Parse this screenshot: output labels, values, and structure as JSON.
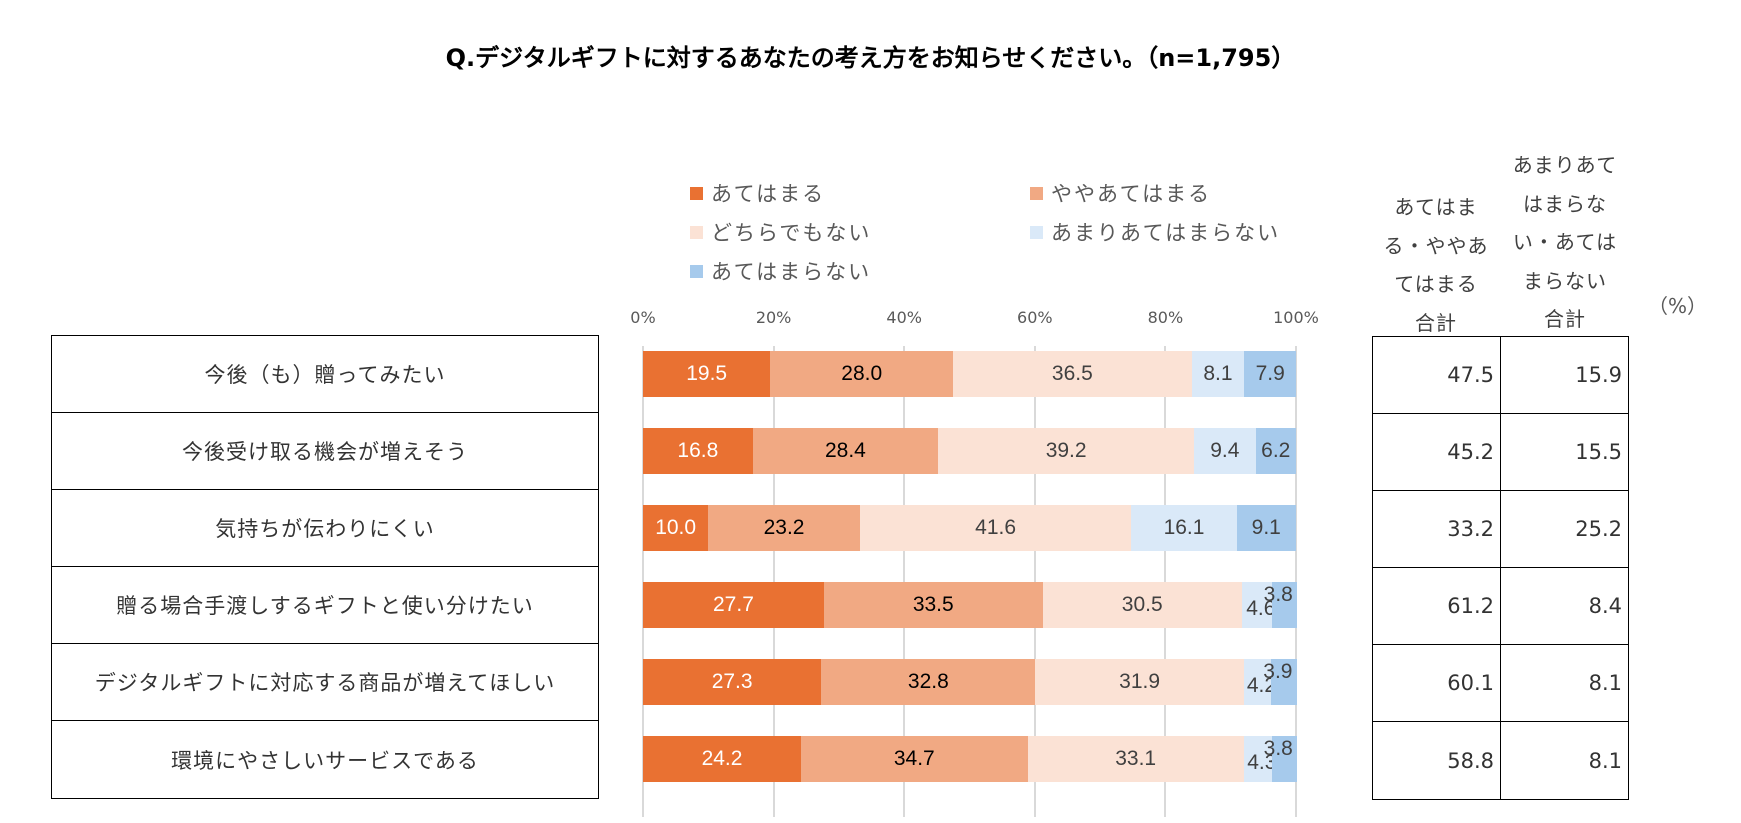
{
  "title": "Q.デジタルギフトに対するあなたの考え方をお知らせください。（n=1,795）",
  "unit_label": "（%）",
  "summary_headers": [
    [
      "あてはま",
      "る・ややあ",
      "てはまる",
      "合計"
    ],
    [
      "あまりあて",
      "はまらな",
      "い・あては",
      "まらない",
      "合計"
    ]
  ],
  "chart_data": {
    "type": "bar",
    "orientation": "horizontal",
    "stacked": "100%",
    "title": "Q.デジタルギフトに対するあなたの考え方をお知らせください。（n=1,795）",
    "xlabel": "",
    "ylabel": "",
    "xlim": [
      0,
      100
    ],
    "x_ticks": [
      "0%",
      "20%",
      "40%",
      "60%",
      "80%",
      "100%"
    ],
    "grid": true,
    "legend_position": "top",
    "categories": [
      "今後（も）贈ってみたい",
      "今後受け取る機会が増えそう",
      "気持ちが伝わりにくい",
      "贈る場合手渡しするギフトと使い分けたい",
      "デジタルギフトに対応する商品が増えてほしい",
      "環境にやさしいサービスである"
    ],
    "series": [
      {
        "name": "あてはまる",
        "color": "#E97132",
        "label_color": "#FFFFFF",
        "values": [
          19.5,
          16.8,
          10.0,
          27.7,
          27.3,
          24.2
        ]
      },
      {
        "name": "ややあてはまる",
        "color": "#F1A983",
        "label_color": "#000000",
        "values": [
          28.0,
          28.4,
          23.2,
          33.5,
          32.8,
          34.7
        ]
      },
      {
        "name": "どちらでもない",
        "color": "#FBE2D5",
        "label_color": "#404040",
        "values": [
          36.5,
          39.2,
          41.6,
          30.5,
          31.9,
          33.1
        ]
      },
      {
        "name": "あまりあてはまらない",
        "color": "#DAE9F8",
        "label_color": "#404040",
        "values": [
          8.1,
          9.4,
          16.1,
          4.6,
          4.2,
          4.3
        ]
      },
      {
        "name": "あてはまらない",
        "color": "#A6CAEC",
        "label_color": "#404040",
        "values": [
          7.9,
          6.2,
          9.1,
          3.8,
          3.9,
          3.8
        ]
      }
    ],
    "totals": {
      "headers": [
        "あてはまる・ややあてはまる合計",
        "あまりあてはまらない・あてはまらない合計"
      ],
      "agree": [
        47.5,
        45.2,
        33.2,
        61.2,
        60.1,
        58.8
      ],
      "disagree": [
        15.9,
        15.5,
        25.2,
        8.4,
        8.1,
        8.1
      ]
    }
  }
}
